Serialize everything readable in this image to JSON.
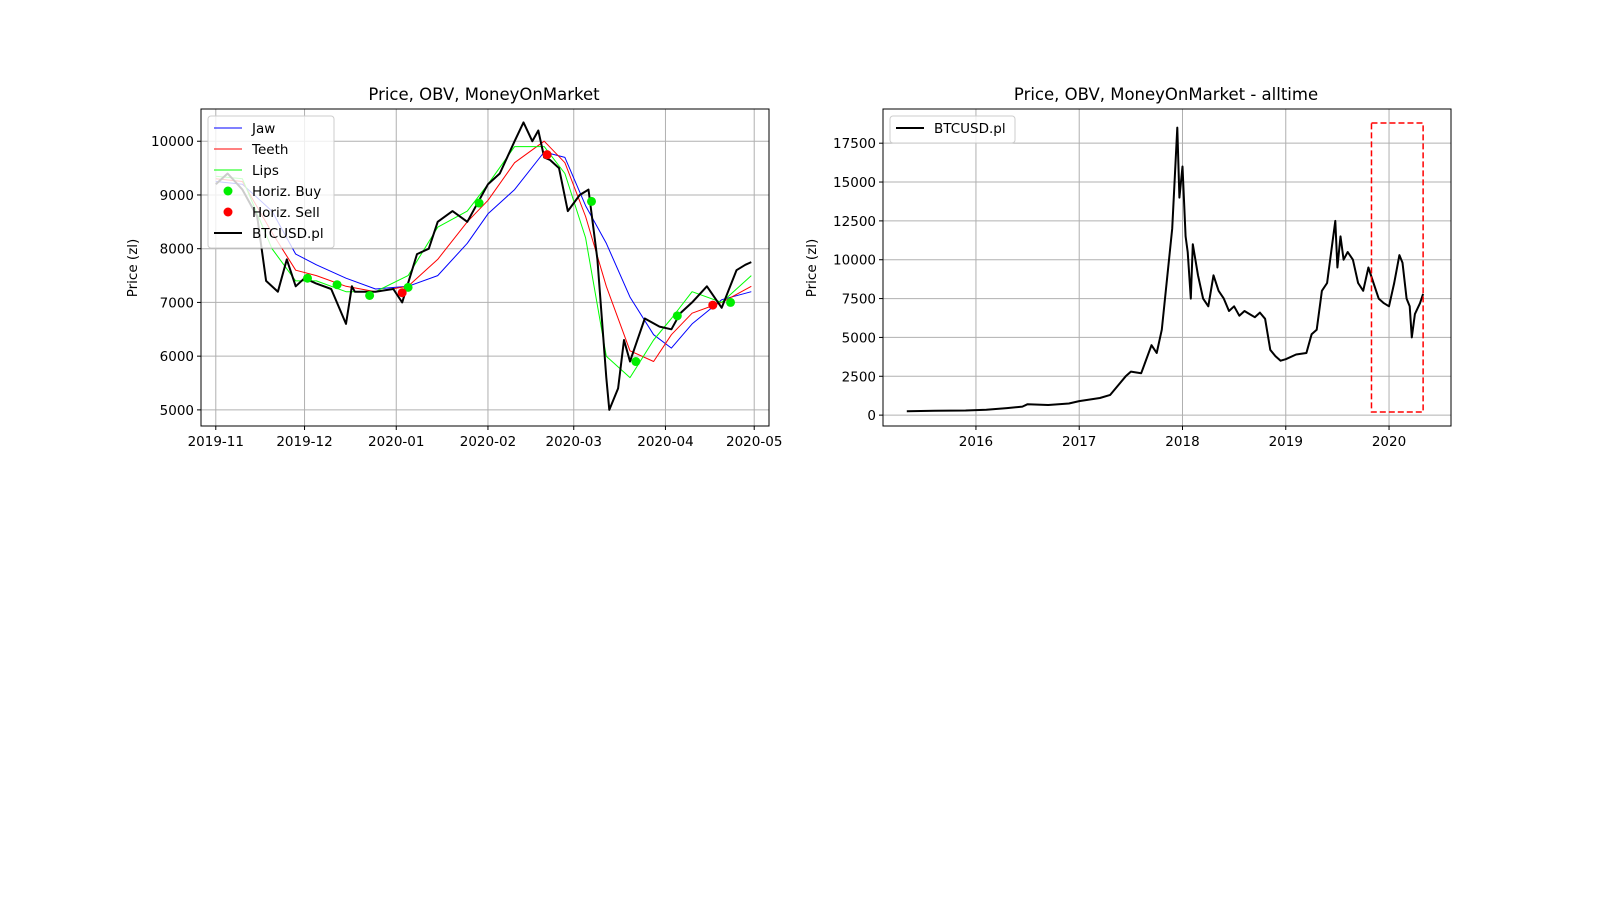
{
  "chart_data": [
    {
      "type": "line",
      "title": "Price, OBV, MoneyOnMarket",
      "xlabel": "",
      "ylabel": "Price (zl)",
      "x_type": "date",
      "xlim": [
        "2019-10-27",
        "2020-05-06"
      ],
      "ylim": [
        4700,
        10600
      ],
      "grid": true,
      "legend_position": "top-left",
      "xtick_labels": [
        "2019-11",
        "2019-12",
        "2020-01",
        "2020-02",
        "2020-03",
        "2020-04",
        "2020-05"
      ],
      "xtick_dates": [
        "2019-11-01",
        "2019-12-01",
        "2020-01-01",
        "2020-02-01",
        "2020-03-01",
        "2020-04-01",
        "2020-05-01"
      ],
      "ytick_values": [
        5000,
        6000,
        7000,
        8000,
        9000,
        10000
      ],
      "ytick_labels": [
        "5000",
        "6000",
        "7000",
        "8000",
        "9000",
        "10000"
      ],
      "colors": {
        "jaw": "#0000ff",
        "teeth": "#ff0000",
        "lips": "#00ff00",
        "buy": "#00ee00",
        "sell": "#ff0000",
        "price": "#000000"
      },
      "legend": [
        "Jaw",
        "Teeth",
        "Lips",
        "Horiz. Buy",
        "Horiz. Sell",
        "BTCUSD.pl"
      ],
      "series": [
        {
          "name": "Jaw",
          "color": "#0000ff",
          "width": 1,
          "x": [
            "2019-11-01",
            "2019-11-10",
            "2019-11-20",
            "2019-11-28",
            "2019-12-05",
            "2019-12-15",
            "2019-12-25",
            "2020-01-05",
            "2020-01-15",
            "2020-01-25",
            "2020-02-01",
            "2020-02-10",
            "2020-02-20",
            "2020-02-27",
            "2020-03-05",
            "2020-03-12",
            "2020-03-20",
            "2020-03-28",
            "2020-04-03",
            "2020-04-10",
            "2020-04-20",
            "2020-04-30"
          ],
          "y": [
            9250,
            9200,
            8700,
            7900,
            7700,
            7450,
            7250,
            7300,
            7500,
            8100,
            8650,
            9100,
            9800,
            9700,
            8800,
            8100,
            7100,
            6400,
            6150,
            6600,
            7050,
            7200
          ]
        },
        {
          "name": "Teeth",
          "color": "#ff0000",
          "width": 1,
          "x": [
            "2019-11-01",
            "2019-11-10",
            "2019-11-20",
            "2019-11-28",
            "2019-12-05",
            "2019-12-15",
            "2019-12-25",
            "2020-01-05",
            "2020-01-15",
            "2020-01-25",
            "2020-02-01",
            "2020-02-10",
            "2020-02-20",
            "2020-02-27",
            "2020-03-05",
            "2020-03-12",
            "2020-03-20",
            "2020-03-28",
            "2020-04-03",
            "2020-04-10",
            "2020-04-20",
            "2020-04-30"
          ],
          "y": [
            9300,
            9250,
            8300,
            7600,
            7500,
            7300,
            7200,
            7300,
            7800,
            8500,
            8900,
            9600,
            10000,
            9600,
            8600,
            7300,
            6100,
            5900,
            6400,
            6800,
            7000,
            7300
          ]
        },
        {
          "name": "Lips",
          "color": "#00ff00",
          "width": 1,
          "x": [
            "2019-11-01",
            "2019-11-10",
            "2019-11-20",
            "2019-11-28",
            "2019-12-05",
            "2019-12-15",
            "2019-12-25",
            "2020-01-05",
            "2020-01-15",
            "2020-01-25",
            "2020-02-01",
            "2020-02-10",
            "2020-02-20",
            "2020-02-27",
            "2020-03-05",
            "2020-03-12",
            "2020-03-20",
            "2020-03-28",
            "2020-04-03",
            "2020-04-10",
            "2020-04-20",
            "2020-04-30"
          ],
          "y": [
            9350,
            9300,
            8000,
            7400,
            7400,
            7200,
            7200,
            7500,
            8400,
            8700,
            9200,
            9900,
            9900,
            9400,
            8200,
            6000,
            5600,
            6300,
            6700,
            7200,
            7000,
            7500
          ]
        },
        {
          "name": "BTCUSD.pl",
          "color": "#000000",
          "width": 2,
          "x": [
            "2019-11-01",
            "2019-11-05",
            "2019-11-10",
            "2019-11-15",
            "2019-11-18",
            "2019-11-22",
            "2019-11-25",
            "2019-11-28",
            "2019-12-01",
            "2019-12-05",
            "2019-12-10",
            "2019-12-15",
            "2019-12-17",
            "2019-12-18",
            "2019-12-25",
            "2019-12-31",
            "2020-01-03",
            "2020-01-08",
            "2020-01-12",
            "2020-01-15",
            "2020-01-20",
            "2020-01-25",
            "2020-01-30",
            "2020-02-01",
            "2020-02-05",
            "2020-02-10",
            "2020-02-13",
            "2020-02-16",
            "2020-02-18",
            "2020-02-20",
            "2020-02-22",
            "2020-02-25",
            "2020-02-28",
            "2020-03-03",
            "2020-03-06",
            "2020-03-09",
            "2020-03-12",
            "2020-03-13",
            "2020-03-16",
            "2020-03-18",
            "2020-03-20",
            "2020-03-25",
            "2020-03-30",
            "2020-04-03",
            "2020-04-06",
            "2020-04-10",
            "2020-04-15",
            "2020-04-20",
            "2020-04-25",
            "2020-04-28",
            "2020-04-30"
          ],
          "y": [
            9200,
            9400,
            9100,
            8600,
            7400,
            7200,
            7800,
            7300,
            7450,
            7350,
            7250,
            6600,
            7300,
            7200,
            7200,
            7250,
            7000,
            7900,
            8000,
            8500,
            8700,
            8500,
            9000,
            9200,
            9400,
            10000,
            10350,
            10000,
            10200,
            9700,
            9650,
            9500,
            8700,
            9000,
            9100,
            7800,
            5600,
            5000,
            5400,
            6300,
            5900,
            6700,
            6550,
            6500,
            6800,
            7000,
            7300,
            6900,
            7600,
            7700,
            7750
          ]
        }
      ],
      "markers": [
        {
          "name": "Horiz. Buy",
          "color": "#00ee00",
          "x": [
            "2019-12-02",
            "2019-12-12",
            "2019-12-23",
            "2020-01-05",
            "2020-01-29",
            "2020-03-07",
            "2020-03-22",
            "2020-04-05",
            "2020-04-23"
          ],
          "y": [
            7450,
            7330,
            7130,
            7280,
            8850,
            8880,
            5900,
            6750,
            7000
          ]
        },
        {
          "name": "Horiz. Sell",
          "color": "#ff0000",
          "x": [
            "2020-01-03",
            "2020-02-21",
            "2020-04-17"
          ],
          "y": [
            7180,
            9750,
            6950
          ]
        }
      ]
    },
    {
      "type": "line",
      "title": "Price, OBV, MoneyOnMarket - alltime",
      "xlabel": "",
      "ylabel": "Price (zl)",
      "x_type": "year",
      "xlim": [
        2015.1,
        2020.6
      ],
      "ylim": [
        -700,
        19700
      ],
      "grid": true,
      "legend_position": "top-left",
      "xtick_labels": [
        "2016",
        "2017",
        "2018",
        "2019",
        "2020"
      ],
      "xtick_values": [
        2016,
        2017,
        2018,
        2019,
        2020
      ],
      "ytick_values": [
        0,
        2500,
        5000,
        7500,
        10000,
        12500,
        15000,
        17500
      ],
      "ytick_labels": [
        "0",
        "2500",
        "5000",
        "7500",
        "10000",
        "12500",
        "15000",
        "17500"
      ],
      "legend": [
        "BTCUSD.pl"
      ],
      "highlight_box": {
        "x0": 2019.83,
        "x1": 2020.33,
        "y0": 200,
        "y1": 18800,
        "color": "#ff0000"
      },
      "series": [
        {
          "name": "BTCUSD.pl",
          "color": "#000000",
          "width": 2,
          "x": [
            2015.33,
            2015.6,
            2015.9,
            2016.1,
            2016.3,
            2016.45,
            2016.5,
            2016.7,
            2016.9,
            2017.0,
            2017.2,
            2017.3,
            2017.45,
            2017.5,
            2017.6,
            2017.7,
            2017.75,
            2017.8,
            2017.9,
            2017.95,
            2017.97,
            2018.0,
            2018.03,
            2018.05,
            2018.08,
            2018.1,
            2018.15,
            2018.2,
            2018.25,
            2018.3,
            2018.35,
            2018.4,
            2018.45,
            2018.5,
            2018.55,
            2018.6,
            2018.65,
            2018.7,
            2018.75,
            2018.8,
            2018.85,
            2018.9,
            2018.95,
            2019.0,
            2019.1,
            2019.2,
            2019.25,
            2019.3,
            2019.35,
            2019.4,
            2019.45,
            2019.48,
            2019.5,
            2019.53,
            2019.56,
            2019.6,
            2019.65,
            2019.7,
            2019.75,
            2019.8,
            2019.85,
            2019.9,
            2019.95,
            2020.0,
            2020.05,
            2020.1,
            2020.13,
            2020.17,
            2020.2,
            2020.22,
            2020.25,
            2020.3,
            2020.33
          ],
          "y": [
            250,
            280,
            300,
            350,
            450,
            550,
            700,
            650,
            750,
            900,
            1100,
            1300,
            2500,
            2800,
            2700,
            4500,
            4000,
            5500,
            12000,
            18500,
            14000,
            16000,
            11500,
            10500,
            7500,
            11000,
            9000,
            7500,
            7000,
            9000,
            8000,
            7500,
            6700,
            7000,
            6400,
            6700,
            6500,
            6300,
            6600,
            6200,
            4200,
            3800,
            3500,
            3600,
            3900,
            4000,
            5200,
            5500,
            8000,
            8500,
            11000,
            12500,
            9500,
            11500,
            10000,
            10500,
            10000,
            8500,
            8000,
            9500,
            8500,
            7500,
            7200,
            7000,
            8500,
            10300,
            9800,
            7500,
            7000,
            5000,
            6500,
            7200,
            7800
          ]
        }
      ]
    }
  ]
}
